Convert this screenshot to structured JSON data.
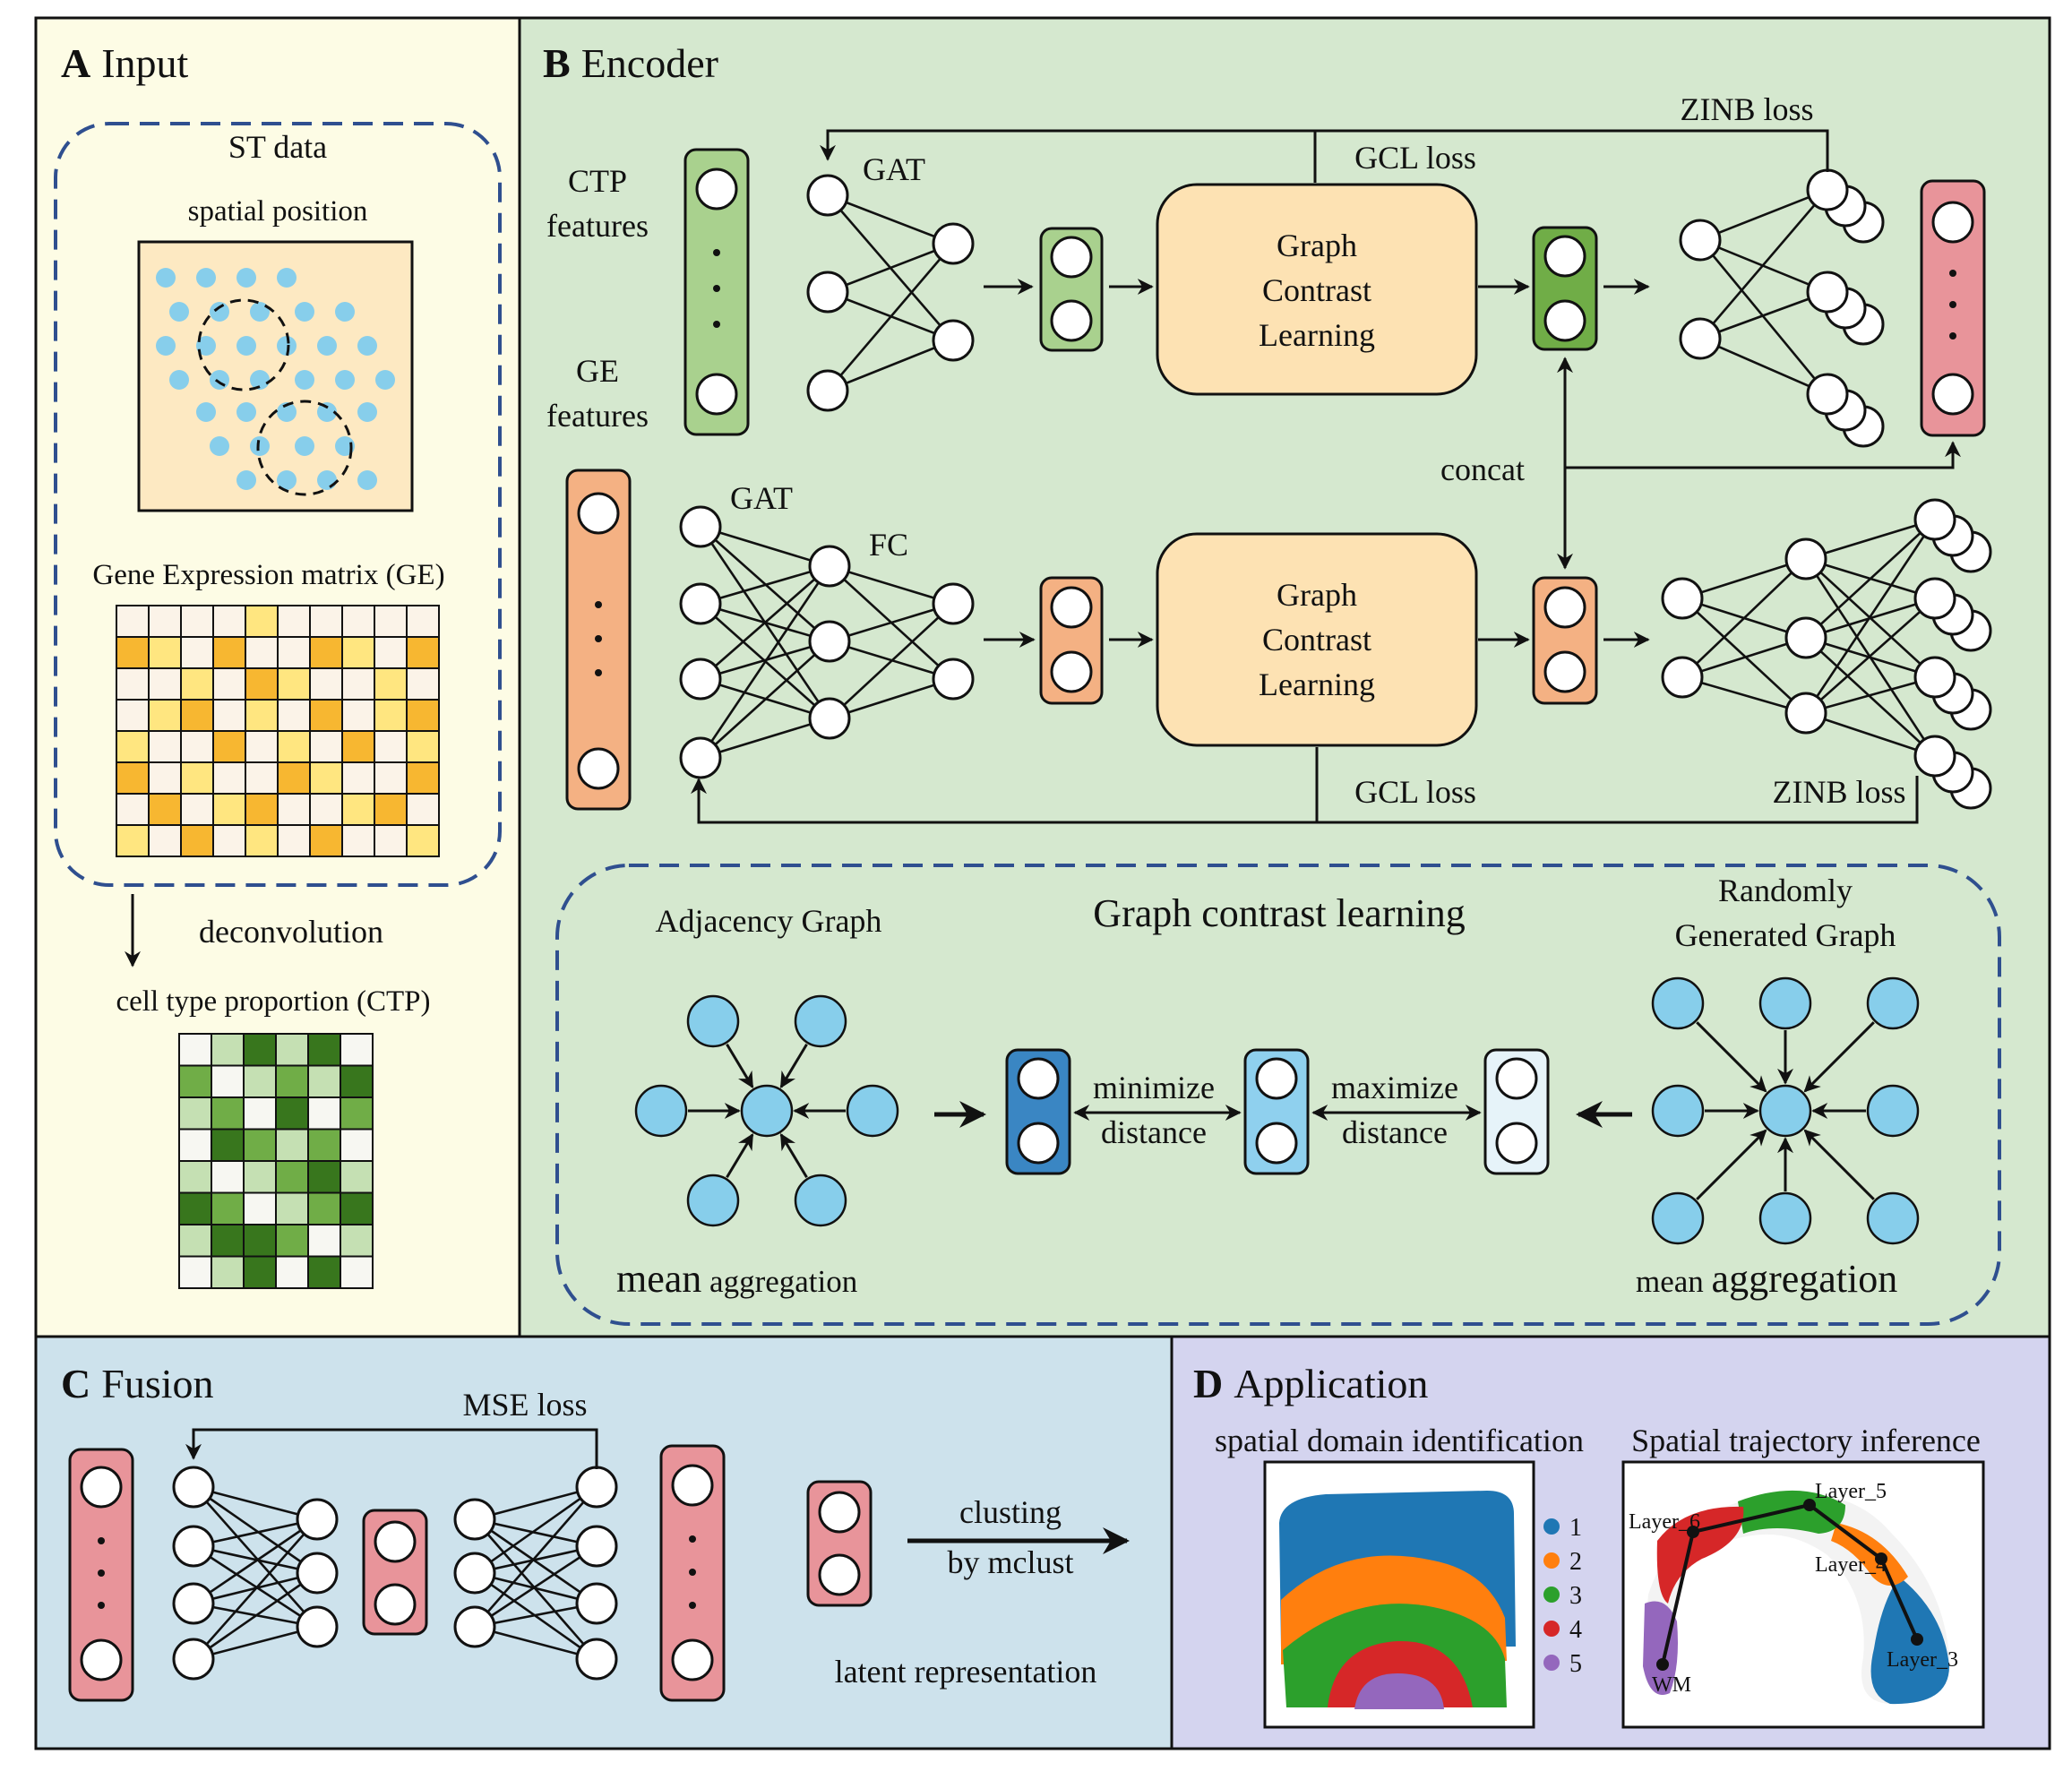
{
  "panels": {
    "a": {
      "letter": "A",
      "name": "Input"
    },
    "b": {
      "letter": "B",
      "name": "Encoder"
    },
    "c": {
      "letter": "C",
      "name": "Fusion"
    },
    "d": {
      "letter": "D",
      "name": "Application"
    }
  },
  "input": {
    "st_data": "ST data",
    "spatial_position": "spatial position",
    "ge_matrix": "Gene Expression matrix (GE)",
    "deconvolution": "deconvolution",
    "ctp": "cell type proportion (CTP)"
  },
  "encoder": {
    "ctp_features": [
      "CTP",
      "features"
    ],
    "ge_features": [
      "GE",
      "features"
    ],
    "gat_top": "GAT",
    "gat_bottom": "GAT",
    "fc": "FC",
    "gcl_box_top": [
      "Graph",
      "Contrast",
      "Learning"
    ],
    "gcl_box_bottom": [
      "Graph",
      "Contrast",
      "Learning"
    ],
    "gcl_loss_top": "GCL loss",
    "gcl_loss_bottom": "GCL loss",
    "zinb_loss_top": "ZINB loss",
    "zinb_loss_bottom": "ZINB loss",
    "concat": "concat",
    "dots": "·"
  },
  "gcl": {
    "title": "Graph contrast learning",
    "adjacency": "Adjacency Graph",
    "random": [
      "Randomly",
      "Generated Graph"
    ],
    "minimize": [
      "minimize",
      "distance"
    ],
    "maximize": [
      "maximize",
      "distance"
    ],
    "mean_agg_left": {
      "big": "mean",
      "small": " aggregation"
    },
    "mean_agg_right": {
      "small": "mean ",
      "big": "aggregation"
    }
  },
  "fusion": {
    "mse_loss": "MSE loss",
    "clusting": [
      "clusting",
      "by mclust"
    ],
    "latent": "latent representation"
  },
  "application": {
    "domain_title": "spatial domain identification",
    "trajectory_title": "Spatial trajectory inference",
    "legend": [
      {
        "label": "1",
        "color": "#1f77b4"
      },
      {
        "label": "2",
        "color": "#ff7f0e"
      },
      {
        "label": "3",
        "color": "#2ca02c"
      },
      {
        "label": "4",
        "color": "#d62728"
      },
      {
        "label": "5",
        "color": "#9467bd"
      }
    ],
    "trajectory_nodes": [
      "Layer_6",
      "Layer_5",
      "Layer_4",
      "Layer_3",
      "WM"
    ]
  },
  "colors": {
    "panel_a": "#fdfce5",
    "panel_b": "#d5e8cf",
    "panel_c": "#cde2ec",
    "panel_d": "#d4d4ef",
    "dot_blue": "#87ceeb",
    "box_green": "#a9d18e",
    "box_dark_green": "#70ad47",
    "box_orange": "#f4b183",
    "box_pink": "#e8949a",
    "box_gcl": "#fde2b3",
    "blue_dark": "#3a86c3",
    "blue_mid": "#8fd0ee",
    "blue_light": "#e6f3f9"
  }
}
